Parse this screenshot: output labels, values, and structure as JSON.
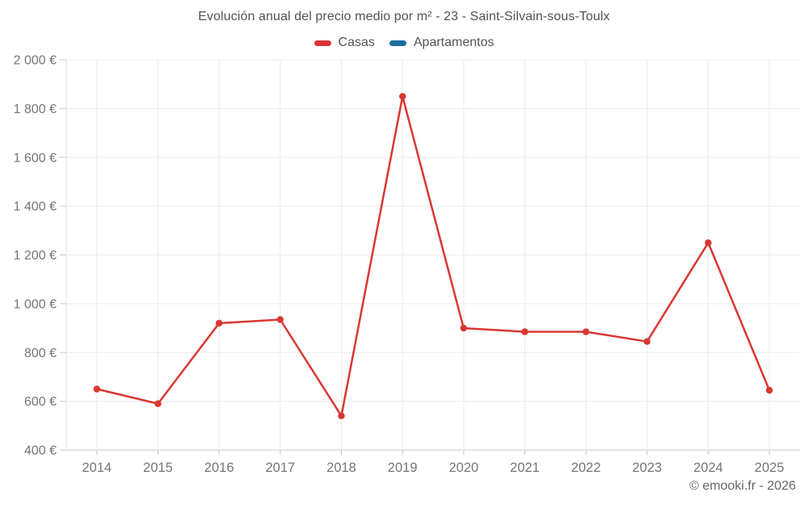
{
  "chart_data": {
    "type": "line",
    "title": "Evolución anual del precio medio por m² - 23 - Saint-Silvain-sous-Toulx",
    "x": [
      "2014",
      "2015",
      "2016",
      "2017",
      "2018",
      "2019",
      "2020",
      "2021",
      "2022",
      "2023",
      "2024",
      "2025"
    ],
    "series": [
      {
        "name": "Casas",
        "color": "#d93732",
        "values": [
          650,
          590,
          920,
          935,
          540,
          1850,
          900,
          885,
          885,
          845,
          1250,
          645
        ]
      },
      {
        "name": "Apartamentos",
        "color": "#1a6d9c",
        "values": []
      }
    ],
    "xlabel": "",
    "ylabel": "",
    "ylim": [
      400,
      2000
    ],
    "ytick_step": 200,
    "ytick_labels": [
      "400 €",
      "600 €",
      "800 €",
      "1 000 €",
      "1 200 €",
      "1 400 €",
      "1 600 €",
      "1 800 €",
      "2 000 €"
    ],
    "grid": true,
    "legend_position": "top",
    "unit": "€"
  },
  "footer": {
    "credit": "© emooki.fr - 2026"
  },
  "colors": {
    "grid": "#ececec",
    "axis": "#c8c8c8",
    "axis_edge": "#e2e2e2",
    "tick_label": "#757575"
  }
}
